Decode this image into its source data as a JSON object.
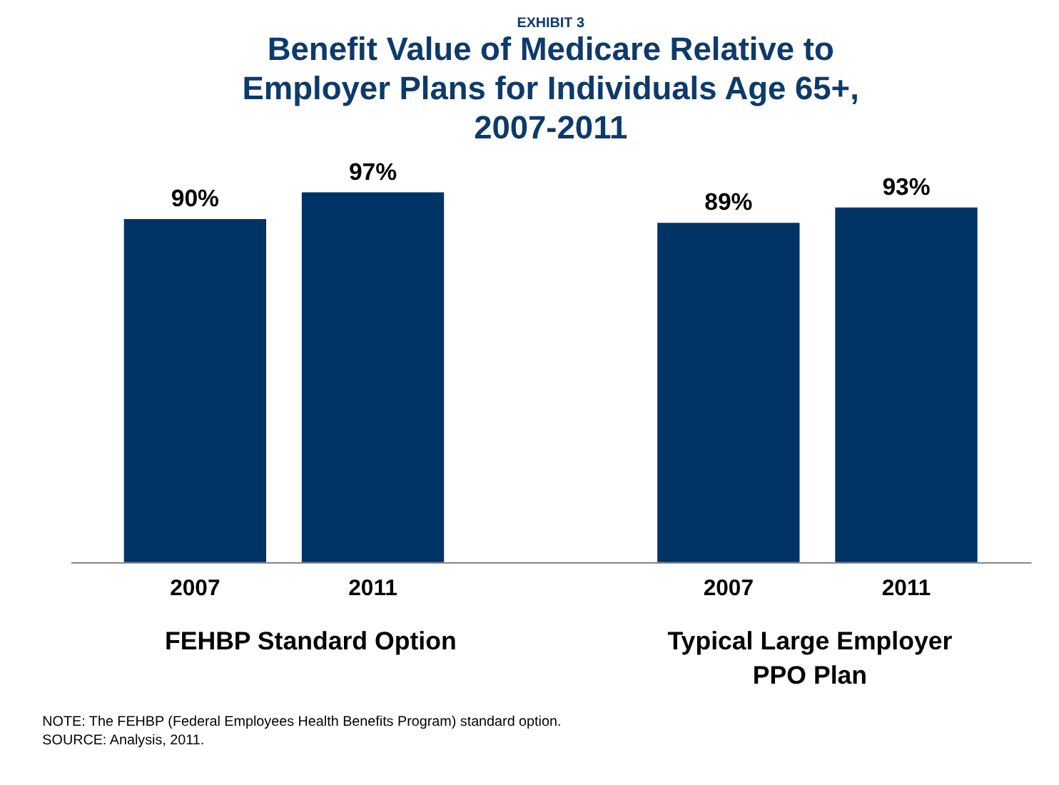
{
  "chart_data": {
    "type": "bar",
    "subtitle": "EXHIBIT 3",
    "title": "Benefit Value of Medicare Relative to Employer Plans  for Individuals Age 65+, 2007-2011",
    "categories": [
      "2007",
      "2011",
      "2007",
      "2011"
    ],
    "values": [
      90,
      97,
      89,
      93
    ],
    "value_labels": [
      "90%",
      "97%",
      "89%",
      "93%"
    ],
    "color": "#003366",
    "annotations": [
      "FEHBP Standard Option",
      "Typical Large Employer PPO Plan",
      "NOTE: The FEHBP (Federal Employees Health Benefits Program) standard option.",
      "SOURCE: Analysis, 2011."
    ]
  }
}
